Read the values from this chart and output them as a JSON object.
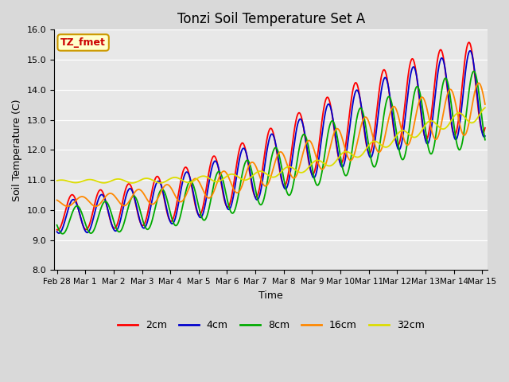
{
  "title": "Tonzi Soil Temperature Set A",
  "xlabel": "Time",
  "ylabel": "Soil Temperature (C)",
  "ylim": [
    8.0,
    16.0
  ],
  "yticks": [
    8.0,
    9.0,
    10.0,
    11.0,
    12.0,
    13.0,
    14.0,
    15.0,
    16.0
  ],
  "fig_facecolor": "#d9d9d9",
  "plot_facecolor": "#e8e8e8",
  "annotation_text": "TZ_fmet",
  "annotation_bg": "#ffffcc",
  "annotation_border": "#cc9900",
  "legend_labels": [
    "2cm",
    "4cm",
    "8cm",
    "16cm",
    "32cm"
  ],
  "line_colors": [
    "#ff0000",
    "#0000cc",
    "#00aa00",
    "#ff8800",
    "#dddd00"
  ],
  "tick_labels": [
    "Feb 28",
    "Mar 1",
    "Mar 2",
    "Mar 3",
    "Mar 4",
    "Mar 5",
    "Mar 6",
    "Mar 7",
    "Mar 8",
    "Mar 9",
    "Mar 10",
    "Mar 11",
    "Mar 12",
    "Mar 13",
    "Mar 14",
    "Mar 15"
  ],
  "tick_positions": [
    0,
    1,
    2,
    3,
    4,
    5,
    6,
    7,
    8,
    9,
    10,
    11,
    12,
    13,
    14,
    15
  ]
}
